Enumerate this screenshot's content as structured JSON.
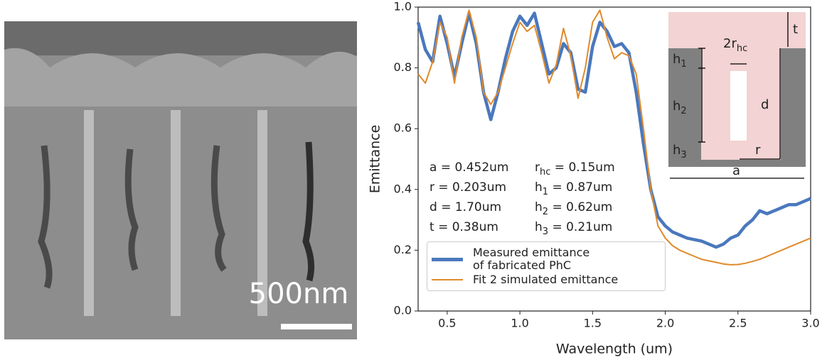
{
  "image": {
    "scale_bar_label": "500nm"
  },
  "chart_data": {
    "type": "line",
    "xlabel": "Wavelength (um)",
    "ylabel": "Emittance",
    "xlim": [
      0.3,
      3.0
    ],
    "ylim": [
      0,
      1
    ],
    "xticks": [
      0.5,
      {
        "value": 1,
        "label": "1.0"
      },
      1.5,
      {
        "value": 2,
        "label": "2.0"
      },
      2.5,
      {
        "value": 3,
        "label": "3.0"
      }
    ],
    "yticks": [
      {
        "value": 0,
        "label": "0.0"
      },
      0.2,
      0.4,
      0.6,
      0.8,
      {
        "value": 1,
        "label": "1.0"
      }
    ],
    "legend_position": "lower left",
    "x": [
      0.3,
      0.35,
      0.4,
      0.45,
      0.5,
      0.55,
      0.6,
      0.65,
      0.7,
      0.75,
      0.8,
      0.85,
      0.9,
      0.95,
      1.0,
      1.05,
      1.1,
      1.15,
      1.2,
      1.25,
      1.3,
      1.35,
      1.4,
      1.45,
      1.5,
      1.55,
      1.6,
      1.65,
      1.7,
      1.75,
      1.8,
      1.85,
      1.9,
      1.95,
      2.0,
      2.05,
      2.1,
      2.15,
      2.2,
      2.25,
      2.3,
      2.35,
      2.4,
      2.45,
      2.5,
      2.55,
      2.6,
      2.65,
      2.7,
      2.75,
      2.8,
      2.85,
      2.9,
      2.95,
      3.0
    ],
    "series": [
      {
        "name": "Measured emittance of fabricated PhC",
        "color": "#4a78bd",
        "values": [
          0.95,
          0.86,
          0.82,
          0.97,
          0.88,
          0.77,
          0.88,
          0.98,
          0.88,
          0.72,
          0.63,
          0.72,
          0.83,
          0.92,
          0.97,
          0.94,
          0.98,
          0.88,
          0.78,
          0.8,
          0.88,
          0.85,
          0.73,
          0.72,
          0.87,
          0.95,
          0.92,
          0.87,
          0.88,
          0.85,
          0.72,
          0.55,
          0.4,
          0.31,
          0.28,
          0.26,
          0.25,
          0.24,
          0.235,
          0.23,
          0.22,
          0.21,
          0.22,
          0.24,
          0.25,
          0.28,
          0.3,
          0.33,
          0.32,
          0.33,
          0.34,
          0.35,
          0.35,
          0.36,
          0.37
        ]
      },
      {
        "name": "Fit 2 simulated emittance",
        "color": "#e08a2c",
        "values": [
          0.78,
          0.75,
          0.82,
          0.95,
          0.9,
          0.75,
          0.9,
          0.99,
          0.9,
          0.72,
          0.68,
          0.72,
          0.8,
          0.88,
          0.95,
          0.92,
          0.94,
          0.85,
          0.75,
          0.81,
          0.93,
          0.84,
          0.7,
          0.8,
          0.95,
          0.99,
          0.9,
          0.83,
          0.85,
          0.84,
          0.78,
          0.6,
          0.4,
          0.28,
          0.24,
          0.215,
          0.2,
          0.19,
          0.18,
          0.17,
          0.165,
          0.16,
          0.155,
          0.152,
          0.153,
          0.157,
          0.163,
          0.17,
          0.18,
          0.19,
          0.2,
          0.21,
          0.22,
          0.23,
          0.24
        ]
      }
    ],
    "annotations": [
      [
        {
          "main": "a = 0.452um"
        },
        {
          "main": "r",
          "sub": "hc",
          "rest": " = 0.15um"
        }
      ],
      [
        {
          "main": "r = 0.203um"
        },
        {
          "main": "h",
          "sub": "1",
          "rest": " = 0.87um"
        }
      ],
      [
        {
          "main": "d = 1.70um"
        },
        {
          "main": "h",
          "sub": "2",
          "rest": " = 0.62um"
        }
      ],
      [
        {
          "main": "t = 0.38um"
        },
        {
          "main": "h",
          "sub": "3",
          "rest": " = 0.21um"
        }
      ]
    ],
    "inset": {
      "t": "t",
      "hc_main": "2r",
      "hc_sub": "hc",
      "h1": "h",
      "h1_sub": "1",
      "h2": "h",
      "h2_sub": "2",
      "h3": "h",
      "h3_sub": "3",
      "d": "d",
      "r": "r",
      "a": "a"
    }
  }
}
